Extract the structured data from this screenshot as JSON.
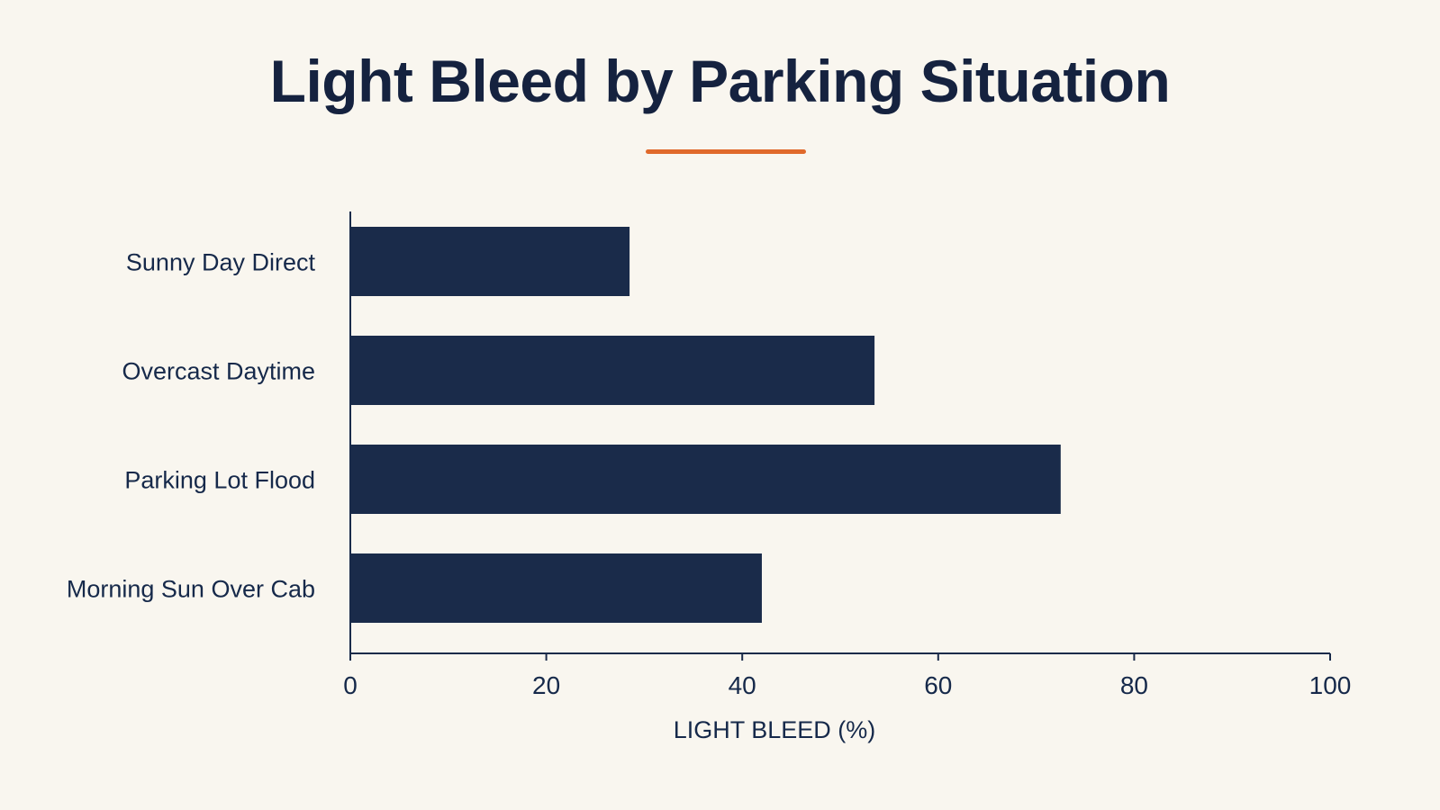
{
  "colors": {
    "background": "#f9f6ef",
    "bar": "#1a2b4a",
    "axis": "#1a2b4a",
    "accent": "#e0692b",
    "text": "#16294a"
  },
  "chart_data": {
    "type": "bar",
    "orientation": "horizontal",
    "title": "Light Bleed by Parking Situation",
    "xlabel": "LIGHT BLEED (%)",
    "ylabel": "",
    "categories": [
      "Sunny Day Direct",
      "Overcast Daytime",
      "Parking Lot Flood",
      "Morning Sun Over Cab"
    ],
    "values": [
      28.5,
      53.5,
      72.5,
      42
    ],
    "xlim": [
      0,
      100
    ],
    "xticks": [
      0,
      20,
      40,
      60,
      80,
      100
    ],
    "grid": false,
    "legend": "none"
  }
}
